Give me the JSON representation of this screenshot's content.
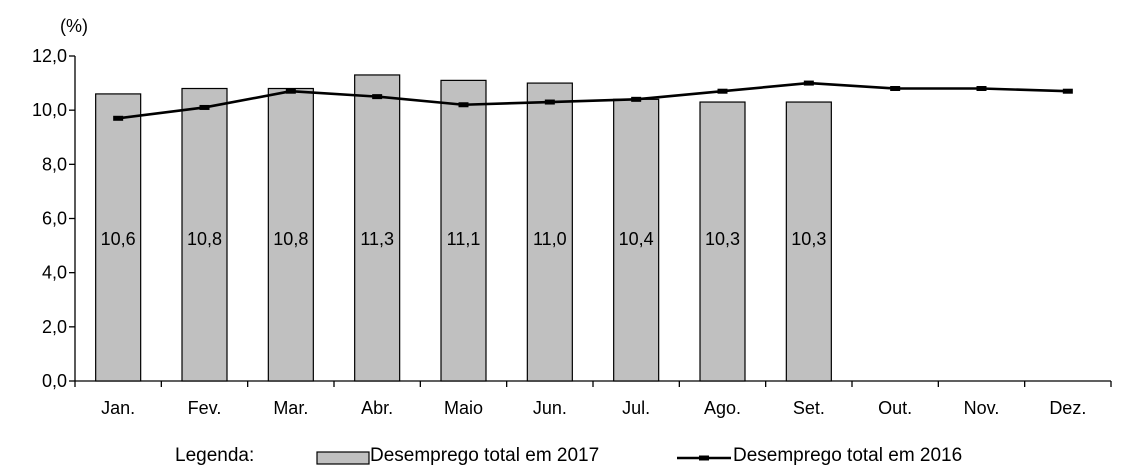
{
  "chart_data": {
    "type": "bar",
    "unit_label": "(%)",
    "categories": [
      "Jan.",
      "Fev.",
      "Mar.",
      "Abr.",
      "Maio",
      "Jun.",
      "Jul.",
      "Ago.",
      "Set.",
      "Out.",
      "Nov.",
      "Dez."
    ],
    "ylim": [
      0,
      12
    ],
    "yticks": [
      0,
      2,
      4,
      6,
      8,
      10,
      12
    ],
    "ytick_labels": [
      "0,0",
      "2,0",
      "4,0",
      "6,0",
      "8,0",
      "10,0",
      "12,0"
    ],
    "series": [
      {
        "name": "Desemprego total em 2017",
        "type": "bar",
        "color": "#c0c0c0",
        "values": [
          10.6,
          10.8,
          10.8,
          11.3,
          11.1,
          11.0,
          10.4,
          10.3,
          10.3,
          null,
          null,
          null
        ],
        "labels": [
          "10,6",
          "10,8",
          "10,8",
          "11,3",
          "11,1",
          "11,0",
          "10,4",
          "10,3",
          "10,3",
          null,
          null,
          null
        ]
      },
      {
        "name": "Desemprego total em 2016",
        "type": "line",
        "color": "#000000",
        "values": [
          9.7,
          10.1,
          10.7,
          10.5,
          10.2,
          10.3,
          10.4,
          10.7,
          11.0,
          10.8,
          10.8,
          10.7
        ]
      }
    ],
    "legend": {
      "title": "Legenda:",
      "placement": "bottom"
    },
    "grid": false
  }
}
